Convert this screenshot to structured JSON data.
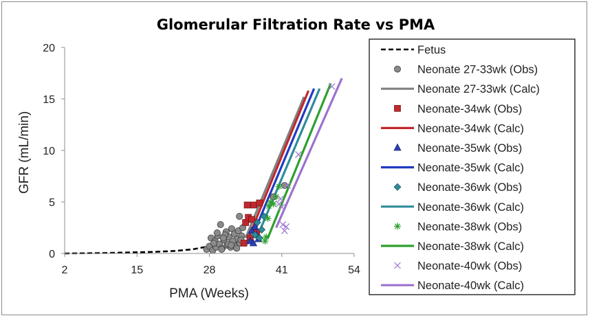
{
  "chart_data": {
    "type": "scatter",
    "title": "Glomerular Filtration Rate vs PMA",
    "xlabel": "PMA (Weeks)",
    "ylabel": "GFR (mL/min)",
    "xlim": [
      2,
      54
    ],
    "ylim": [
      0,
      20
    ],
    "xticks": [
      "2",
      "15",
      "28",
      "41",
      "54"
    ],
    "yticks": [
      "0",
      "5",
      "10",
      "15",
      "20"
    ],
    "grid": false,
    "legend_position": "right",
    "series": [
      {
        "name": "Fetus",
        "kind": "line",
        "style": "dashed",
        "color": "#000000",
        "x": [
          2,
          10,
          18,
          22,
          25,
          27,
          29,
          31,
          33
        ],
        "y": [
          0,
          0.05,
          0.15,
          0.25,
          0.4,
          0.6,
          0.85,
          1.15,
          1.5
        ]
      },
      {
        "name": "Neonate 27-33wk (Obs)",
        "kind": "scatter",
        "marker": "circle",
        "color": "#7f7f7f",
        "x": [
          27.5,
          28.0,
          28.3,
          28.6,
          29.0,
          29.2,
          29.5,
          29.8,
          30.0,
          30.3,
          30.6,
          31.0,
          31.2,
          31.5,
          31.8,
          32.0,
          32.3,
          32.5,
          32.8,
          33.0,
          33.2,
          33.5,
          33.8,
          34.0,
          30.2,
          30.8,
          31.4,
          32.2,
          32.9,
          29.4,
          28.8,
          30.5,
          31.9,
          33.4,
          33.7,
          39.5,
          41.5
        ],
        "y": [
          0.4,
          0.7,
          1.5,
          0.3,
          1.2,
          0.6,
          1.7,
          0.9,
          2.8,
          0.5,
          1.3,
          2.1,
          0.8,
          1.6,
          0.6,
          2.4,
          1.1,
          1.9,
          0.7,
          1.4,
          2.2,
          1.0,
          1.7,
          2.5,
          0.4,
          1.8,
          0.9,
          1.2,
          0.5,
          2.0,
          1.0,
          1.5,
          0.8,
          3.6,
          1.3,
          5.5,
          6.6
        ]
      },
      {
        "name": "Neonate 27-33wk (Calc)",
        "kind": "line",
        "color": "#808080",
        "x": [
          34.5,
          45.0
        ],
        "y": [
          1.5,
          15.2
        ]
      },
      {
        "name": "Neonate-34wk (Obs)",
        "kind": "scatter",
        "marker": "square",
        "color": "#c0282d",
        "x": [
          34.2,
          34.5,
          34.8,
          35.0,
          35.3,
          35.6,
          36.0,
          36.5,
          37.0
        ],
        "y": [
          1.0,
          3.0,
          4.7,
          3.5,
          1.5,
          3.3,
          4.7,
          2.0,
          4.9
        ]
      },
      {
        "name": "Neonate-34wk  (Calc)",
        "kind": "line",
        "color": "#c0282d",
        "x": [
          35.0,
          45.8
        ],
        "y": [
          1.5,
          15.8
        ]
      },
      {
        "name": "Neonate-35wk (Obs)",
        "kind": "scatter",
        "marker": "triangle",
        "color": "#2b3fb5",
        "x": [
          35.3,
          35.6,
          35.9,
          36.2,
          36.5,
          36.8
        ],
        "y": [
          1.2,
          2.2,
          1.0,
          2.6,
          1.8,
          1.4
        ]
      },
      {
        "name": "Neonate-35wk  (Calc)",
        "kind": "line",
        "color": "#1f3bbf",
        "x": [
          35.6,
          46.8
        ],
        "y": [
          1.5,
          16.0
        ]
      },
      {
        "name": "Neonate-36wk (Obs)",
        "kind": "scatter",
        "marker": "diamond",
        "color": "#2e8b9a",
        "x": [
          36.2,
          36.6,
          37.0,
          37.4,
          37.8
        ],
        "y": [
          1.8,
          3.0,
          1.5,
          2.3,
          3.6
        ]
      },
      {
        "name": "Neonate-36wk  (Calc)",
        "kind": "line",
        "color": "#2e8b9a",
        "x": [
          36.5,
          47.8
        ],
        "y": [
          1.5,
          16.0
        ]
      },
      {
        "name": "Neonate-38wk (Obs)",
        "kind": "scatter",
        "marker": "star",
        "color": "#2ca02c",
        "x": [
          38.0,
          38.2,
          38.5,
          38.7,
          39.0,
          39.5,
          40.0,
          40.5
        ],
        "y": [
          1.2,
          1.6,
          3.4,
          4.6,
          5.0,
          4.8,
          5.5,
          6.5
        ]
      },
      {
        "name": "Neonate-38wk  (Calc)",
        "kind": "line",
        "color": "#2ca02c",
        "x": [
          38.5,
          49.8
        ],
        "y": [
          1.5,
          16.5
        ]
      },
      {
        "name": "Neonate-40wk (Obs)",
        "kind": "scatter",
        "marker": "x",
        "color": "#a37ed6",
        "x": [
          40.5,
          40.8,
          41.0,
          41.2,
          41.5,
          41.8,
          42.0,
          44.0,
          50.0
        ],
        "y": [
          4.8,
          5.3,
          4.5,
          2.8,
          2.2,
          2.6,
          6.6,
          9.6,
          16.2
        ]
      },
      {
        "name": "Neonate-40wk  (Calc)",
        "kind": "line",
        "color": "#9b72cf",
        "x": [
          40.0,
          51.8
        ],
        "y": [
          2.5,
          17.0
        ]
      }
    ]
  }
}
